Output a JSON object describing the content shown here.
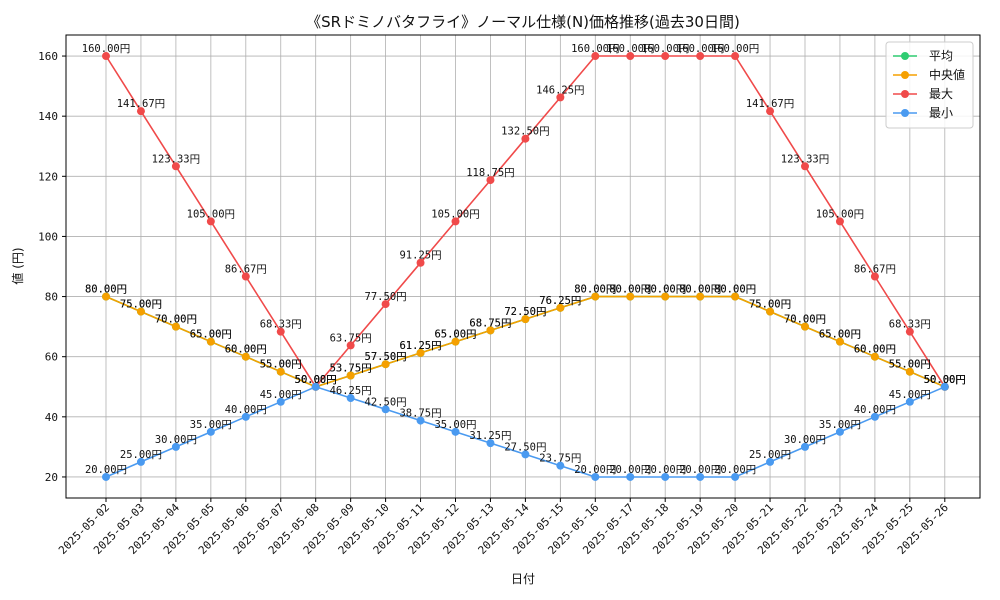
{
  "chart_data": {
    "type": "line",
    "title": "《SRドミノバタフライ》ノーマル仕様(N)価格推移(過去30日間)",
    "xlabel": "日付",
    "ylabel": "値 (円)",
    "ylim": [
      13,
      167
    ],
    "yticks": [
      20,
      40,
      60,
      80,
      100,
      120,
      140,
      160
    ],
    "grid": true,
    "legend_position": "top-right",
    "value_suffix": "円",
    "categories": [
      "2025-05-02",
      "2025-05-03",
      "2025-05-04",
      "2025-05-05",
      "2025-05-06",
      "2025-05-07",
      "2025-05-08",
      "2025-05-09",
      "2025-05-10",
      "2025-05-11",
      "2025-05-12",
      "2025-05-13",
      "2025-05-14",
      "2025-05-15",
      "2025-05-16",
      "2025-05-17",
      "2025-05-18",
      "2025-05-19",
      "2025-05-20",
      "2025-05-21",
      "2025-05-22",
      "2025-05-23",
      "2025-05-24",
      "2025-05-25",
      "2025-05-26"
    ],
    "series": [
      {
        "name": "平均",
        "color": "#2ecc71",
        "values": [
          80.0,
          75.0,
          70.0,
          65.0,
          60.0,
          55.0,
          50.0,
          53.75,
          57.5,
          61.25,
          65.0,
          68.75,
          72.5,
          76.25,
          80.0,
          80.0,
          80.0,
          80.0,
          80.0,
          75.0,
          70.0,
          65.0,
          60.0,
          55.0,
          50.0
        ]
      },
      {
        "name": "中央値",
        "color": "#f5a000",
        "values": [
          80.0,
          75.0,
          70.0,
          65.0,
          60.0,
          55.0,
          50.0,
          53.75,
          57.5,
          61.25,
          65.0,
          68.75,
          72.5,
          76.25,
          80.0,
          80.0,
          80.0,
          80.0,
          80.0,
          75.0,
          70.0,
          65.0,
          60.0,
          55.0,
          50.0
        ]
      },
      {
        "name": "最大",
        "color": "#f04a4a",
        "values": [
          160.0,
          141.67,
          123.33,
          105.0,
          86.67,
          68.33,
          50.0,
          63.75,
          77.5,
          91.25,
          105.0,
          118.75,
          132.5,
          146.25,
          160.0,
          160.0,
          160.0,
          160.0,
          160.0,
          141.67,
          123.33,
          105.0,
          86.67,
          68.33,
          50.0
        ]
      },
      {
        "name": "最小",
        "color": "#4a9af0",
        "values": [
          20.0,
          25.0,
          30.0,
          35.0,
          40.0,
          45.0,
          50.0,
          46.25,
          42.5,
          38.75,
          35.0,
          31.25,
          27.5,
          23.75,
          20.0,
          20.0,
          20.0,
          20.0,
          20.0,
          25.0,
          30.0,
          35.0,
          40.0,
          45.0,
          50.0
        ]
      }
    ]
  }
}
